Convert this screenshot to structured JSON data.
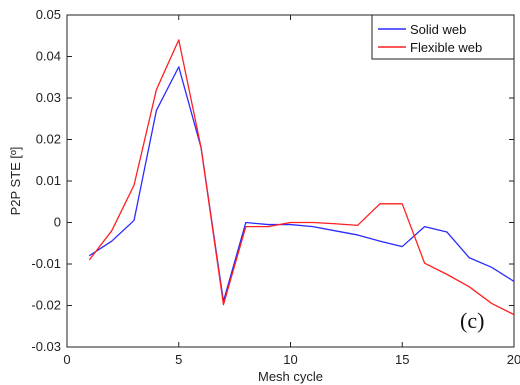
{
  "chart_data": {
    "type": "line",
    "title": "",
    "xlabel": "Mesh cycle",
    "ylabel": "P2P STE [º]",
    "xlim": [
      0,
      20
    ],
    "ylim": [
      -0.03,
      0.05
    ],
    "x_ticks": [
      "0",
      "5",
      "10",
      "15",
      "20"
    ],
    "y_ticks": [
      "-0.03",
      "-0.02",
      "-0.01",
      "0",
      "0.01",
      "0.02",
      "0.03",
      "0.04",
      "0.05"
    ],
    "grid": false,
    "legend_position": "top-right",
    "annotation": "(c)",
    "series": [
      {
        "name": "Solid web",
        "color": "#2b2bff",
        "x": [
          1,
          2,
          3,
          4,
          5,
          6,
          7,
          8,
          9,
          10,
          11,
          12,
          13,
          14,
          15,
          16,
          17,
          18,
          19,
          20
        ],
        "values": [
          -0.008,
          -0.0045,
          0.0005,
          0.027,
          0.0375,
          0.018,
          -0.019,
          0.0,
          -0.0005,
          -0.0005,
          -0.001,
          -0.002,
          -0.003,
          -0.0045,
          -0.0058,
          -0.001,
          -0.0023,
          -0.0085,
          -0.0108,
          -0.0142
        ]
      },
      {
        "name": "Flexible web",
        "color": "#ff2020",
        "x": [
          1,
          2,
          3,
          4,
          5,
          6,
          7,
          8,
          9,
          10,
          11,
          12,
          13,
          14,
          15,
          16,
          17,
          18,
          19,
          20
        ],
        "values": [
          -0.009,
          -0.002,
          0.009,
          0.032,
          0.044,
          0.018,
          -0.0198,
          -0.001,
          -0.001,
          0.0,
          0.0,
          -0.0003,
          -0.0007,
          0.0045,
          0.0045,
          -0.0098,
          -0.0125,
          -0.0155,
          -0.0195,
          -0.0222
        ]
      }
    ]
  }
}
